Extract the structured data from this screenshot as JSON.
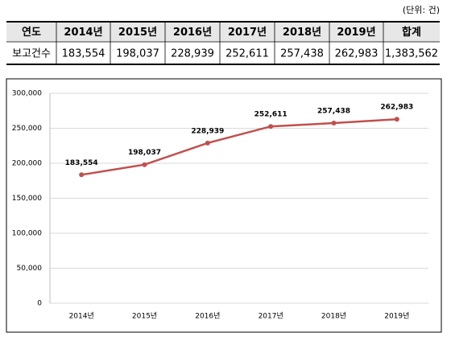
{
  "table": {
    "unit_note": "(단위: 건)",
    "header": [
      "연도",
      "2014년",
      "2015년",
      "2016년",
      "2017년",
      "2018년",
      "2019년",
      "합계"
    ],
    "rows": [
      [
        "보고건수",
        "183,554",
        "198,037",
        "228,939",
        "252,611",
        "257,438",
        "262,983",
        "1,383,562"
      ]
    ]
  },
  "chart_data": {
    "type": "line",
    "categories": [
      "2014년",
      "2015년",
      "2016년",
      "2017년",
      "2018년",
      "2019년"
    ],
    "series": [
      {
        "color": "#c0504d",
        "values": [
          183554,
          198037,
          228939,
          252611,
          257438,
          262983
        ],
        "value_labels": [
          "183,554",
          "198,037",
          "228,939",
          "252,611",
          "257,438",
          "262,983"
        ]
      }
    ],
    "ylim": [
      0,
      300000
    ],
    "yticks": [
      0,
      {
        "value": 50000,
        "label": "50,000"
      },
      {
        "value": 100000,
        "label": "100,000"
      },
      {
        "value": 150000,
        "label": "150,000"
      },
      {
        "value": 200000,
        "label": "200,000"
      },
      {
        "value": 250000,
        "label": "250,000"
      },
      {
        "value": 300000,
        "label": "300,000"
      }
    ],
    "grid": true
  }
}
